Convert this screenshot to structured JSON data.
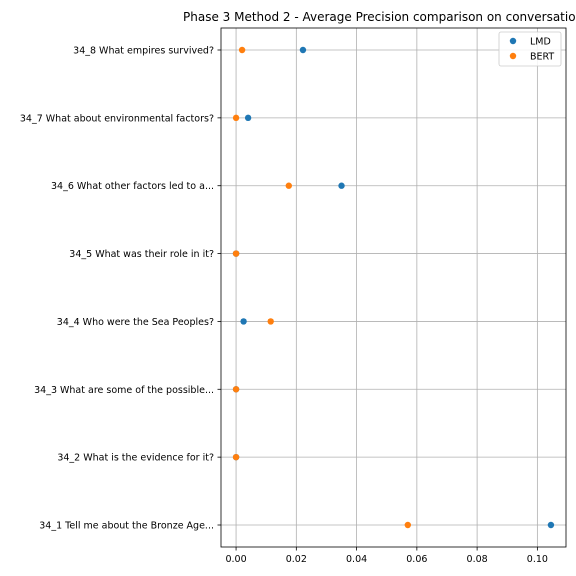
{
  "chart_data": {
    "type": "scatter",
    "title": "Phase 3 Method 2 - Average Precision comparison on conversatio",
    "xlabel": "",
    "ylabel": "",
    "xlim": [
      -0.005,
      0.1095
    ],
    "x_ticks": [
      0.0,
      0.02,
      0.04,
      0.06,
      0.08,
      0.1
    ],
    "x_tick_labels": [
      "0.00",
      "0.02",
      "0.04",
      "0.06",
      "0.08",
      "0.10"
    ],
    "categories": [
      "34_8 What empires survived?",
      "34_7 What about environmental factors?",
      "34_6 What other factors led to a...",
      "34_5 What was their role in it?",
      "34_4 Who were the Sea Peoples?",
      "34_3 What are some of the possible...",
      "34_2 What is the evidence for it?",
      "34_1 Tell me about the Bronze Age..."
    ],
    "series": [
      {
        "name": "LMD",
        "color": "#1f77b4",
        "values": [
          0.0222,
          0.004,
          0.035,
          0.0,
          0.0025,
          0.0,
          0.0,
          0.1045
        ]
      },
      {
        "name": "BERT",
        "color": "#ff7f0e",
        "values": [
          0.002,
          0.0,
          0.0175,
          0.0,
          0.0115,
          0.0,
          0.0,
          0.057
        ]
      }
    ],
    "grid": true,
    "legend_position": "top-right"
  }
}
